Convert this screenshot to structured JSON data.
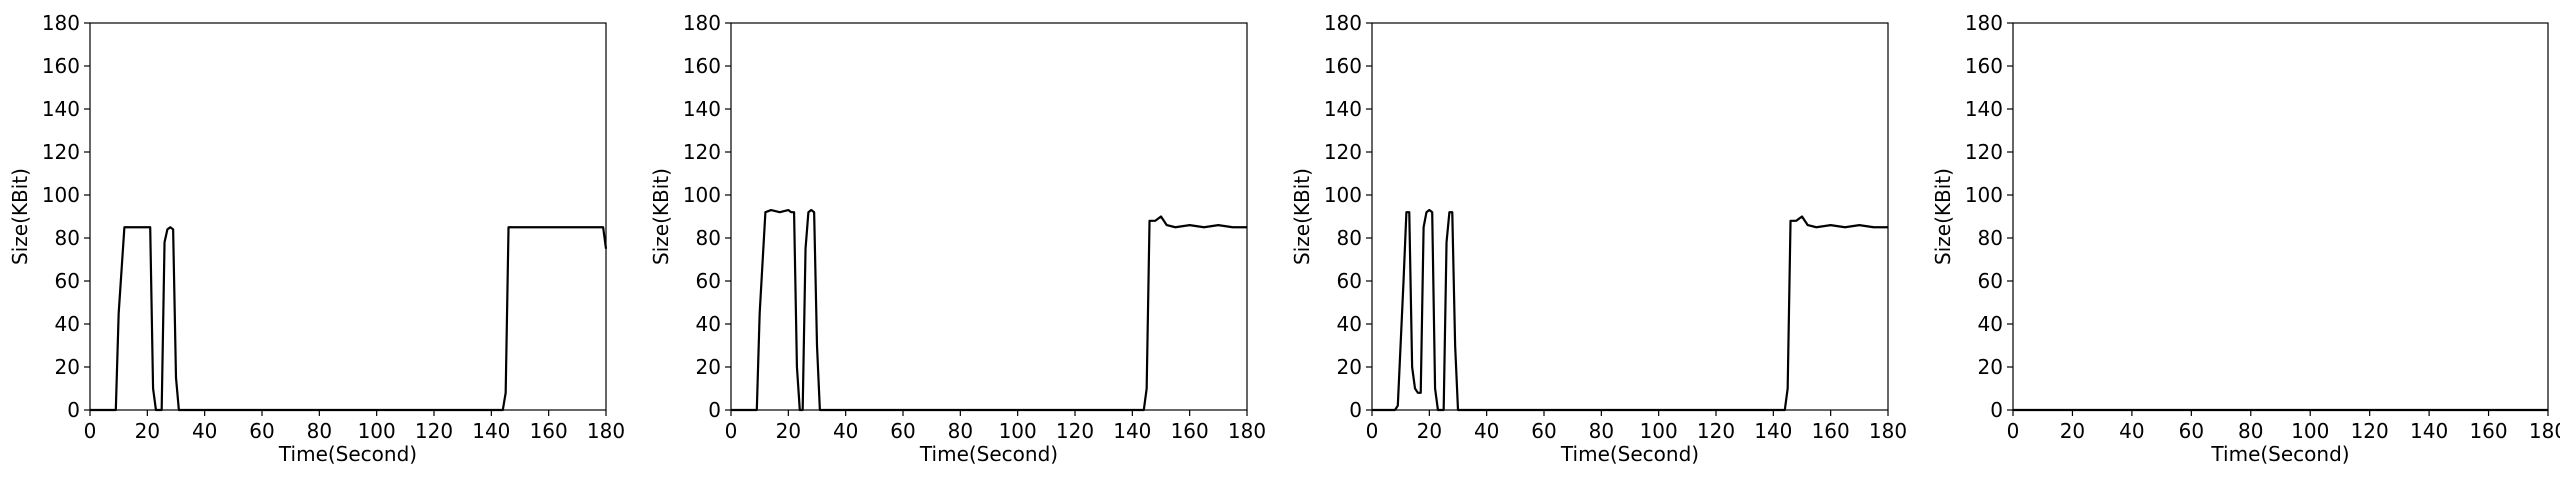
{
  "chart_data": [
    {
      "type": "line",
      "xlabel": "Time(Second)",
      "ylabel": "Size(KBit)",
      "xlim": [
        0,
        180
      ],
      "ylim": [
        0,
        180
      ],
      "xticks": [
        0,
        20,
        40,
        60,
        80,
        100,
        120,
        140,
        160,
        180
      ],
      "yticks": [
        0,
        20,
        40,
        60,
        80,
        100,
        120,
        140,
        160,
        180
      ],
      "series": [
        {
          "color": "#000000",
          "x": [
            0,
            5,
            9,
            10,
            12,
            13,
            16,
            19,
            21,
            22,
            23,
            24,
            25,
            26,
            27,
            28,
            29,
            30,
            31,
            32,
            35,
            60,
            100,
            140,
            144,
            145,
            146,
            147,
            150,
            155,
            160,
            165,
            170,
            175,
            178,
            179,
            180
          ],
          "y": [
            0,
            0,
            0,
            45,
            85,
            85,
            85,
            85,
            85,
            10,
            0,
            0,
            0,
            78,
            84,
            85,
            84,
            15,
            0,
            0,
            0,
            0,
            0,
            0,
            0,
            8,
            85,
            85,
            85,
            85,
            85,
            85,
            85,
            85,
            85,
            85,
            75
          ]
        }
      ]
    },
    {
      "type": "line",
      "xlabel": "Time(Second)",
      "ylabel": "Size(KBit)",
      "xlim": [
        0,
        180
      ],
      "ylim": [
        0,
        180
      ],
      "xticks": [
        0,
        20,
        40,
        60,
        80,
        100,
        120,
        140,
        160,
        180
      ],
      "yticks": [
        0,
        20,
        40,
        60,
        80,
        100,
        120,
        140,
        160,
        180
      ],
      "series": [
        {
          "color": "#000000",
          "x": [
            0,
            5,
            9,
            10,
            12,
            14,
            17,
            20,
            21,
            22,
            23,
            24,
            25,
            26,
            27,
            28,
            29,
            30,
            31,
            32,
            35,
            60,
            100,
            140,
            144,
            145,
            146,
            148,
            150,
            152,
            155,
            160,
            165,
            170,
            175,
            178,
            180
          ],
          "y": [
            0,
            0,
            0,
            45,
            92,
            93,
            92,
            93,
            92,
            92,
            20,
            0,
            0,
            75,
            92,
            93,
            92,
            30,
            0,
            0,
            0,
            0,
            0,
            0,
            0,
            10,
            88,
            88,
            90,
            86,
            85,
            86,
            85,
            86,
            85,
            85,
            85
          ]
        }
      ]
    },
    {
      "type": "line",
      "xlabel": "Time(Second)",
      "ylabel": "Size(KBit)",
      "xlim": [
        0,
        180
      ],
      "ylim": [
        0,
        180
      ],
      "xticks": [
        0,
        20,
        40,
        60,
        80,
        100,
        120,
        140,
        160,
        180
      ],
      "yticks": [
        0,
        20,
        40,
        60,
        80,
        100,
        120,
        140,
        160,
        180
      ],
      "series": [
        {
          "color": "#000000",
          "x": [
            0,
            5,
            8,
            9,
            11,
            12,
            13,
            14,
            15,
            16,
            17,
            18,
            19,
            20,
            21,
            22,
            23,
            24,
            25,
            26,
            27,
            28,
            29,
            30,
            31,
            32,
            35,
            60,
            100,
            140,
            144,
            145,
            146,
            148,
            150,
            152,
            155,
            160,
            165,
            170,
            175,
            178,
            180
          ],
          "y": [
            0,
            0,
            0,
            2,
            60,
            92,
            92,
            20,
            10,
            8,
            8,
            85,
            92,
            93,
            92,
            10,
            0,
            0,
            0,
            78,
            92,
            92,
            30,
            0,
            0,
            0,
            0,
            0,
            0,
            0,
            0,
            10,
            88,
            88,
            90,
            86,
            85,
            86,
            85,
            86,
            85,
            85,
            85
          ]
        }
      ]
    },
    {
      "type": "line",
      "xlabel": "Time(Second)",
      "ylabel": "Size(KBit)",
      "xlim": [
        0,
        180
      ],
      "ylim": [
        0,
        180
      ],
      "xticks": [
        0,
        20,
        40,
        60,
        80,
        100,
        120,
        140,
        160,
        180
      ],
      "yticks": [
        0,
        20,
        40,
        60,
        80,
        100,
        120,
        140,
        160,
        180
      ],
      "series": [
        {
          "color": "#000000",
          "x": [
            0,
            180
          ],
          "y": [
            0,
            0
          ]
        }
      ]
    }
  ]
}
